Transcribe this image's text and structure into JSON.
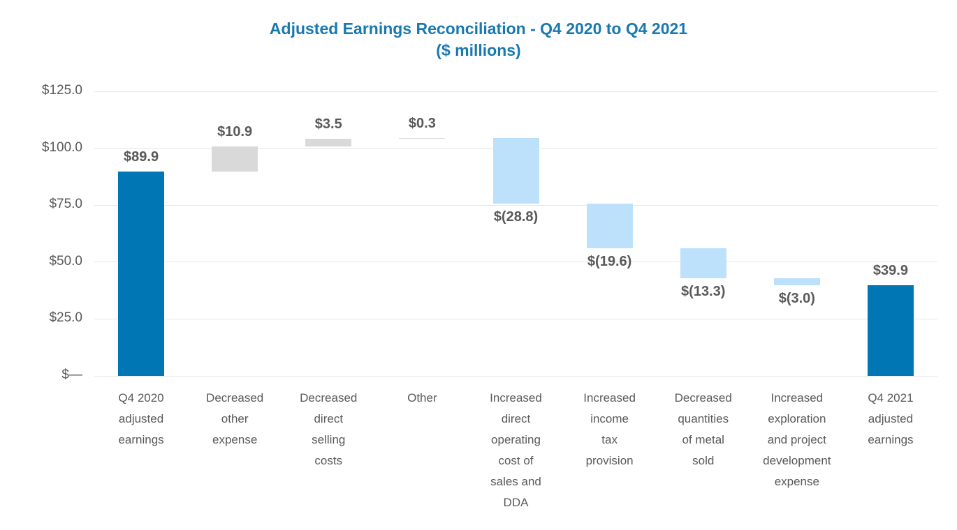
{
  "title": {
    "line1": "Adjusted Earnings Reconciliation - Q4 2020 to Q4 2021",
    "line2": "($ millions)"
  },
  "colors": {
    "title_text": "#1878B2",
    "total_bar": "#0076B4",
    "increase_bar": "#D9D9D9",
    "decrease_bar": "#BDE1FA",
    "label_text": "#595959",
    "axis_text": "#595959",
    "gridline": "#E6E6E6"
  },
  "chart_data": {
    "type": "bar",
    "subtype": "waterfall",
    "title": "Adjusted Earnings Reconciliation - Q4 2020 to Q4 2021",
    "subtitle": "($ millions)",
    "xlabel": "",
    "ylabel": "",
    "ylim": [
      0,
      125
    ],
    "grid": true,
    "legend": false,
    "y_ticks": [
      {
        "value": 125,
        "label": "$125.0"
      },
      {
        "value": 100,
        "label": "$100.0"
      },
      {
        "value": 75,
        "label": "$75.0"
      },
      {
        "value": 50,
        "label": "$50.0"
      },
      {
        "value": 25,
        "label": "$25.0"
      },
      {
        "value": 0,
        "label": "$—"
      }
    ],
    "bars": [
      {
        "category": "Q4 2020 adjusted earnings",
        "category_lines": [
          "Q4 2020",
          "adjusted",
          "earnings"
        ],
        "value": 89.9,
        "label": "$89.9",
        "start": 0,
        "end": 89.9,
        "role": "total",
        "label_position": "above"
      },
      {
        "category": "Decreased other expense",
        "category_lines": [
          "Decreased",
          "other",
          "expense"
        ],
        "value": 10.9,
        "label": "$10.9",
        "start": 89.9,
        "end": 100.8,
        "role": "increase",
        "label_position": "above"
      },
      {
        "category": "Decreased direct selling costs",
        "category_lines": [
          "Decreased",
          "direct",
          "selling",
          "costs"
        ],
        "value": 3.5,
        "label": "$3.5",
        "start": 100.8,
        "end": 104.3,
        "role": "increase",
        "label_position": "above"
      },
      {
        "category": "Other",
        "category_lines": [
          "Other"
        ],
        "value": 0.3,
        "label": "$0.3",
        "start": 104.3,
        "end": 104.6,
        "role": "increase",
        "label_position": "above"
      },
      {
        "category": "Increased direct operating cost of sales and DDA",
        "category_lines": [
          "Increased",
          "direct",
          "operating",
          "cost of",
          "sales and",
          "DDA"
        ],
        "value": -28.8,
        "label": "$(28.8)",
        "start": 104.6,
        "end": 75.8,
        "role": "decrease",
        "label_position": "below"
      },
      {
        "category": "Increased income tax provision",
        "category_lines": [
          "Increased",
          "income",
          "tax",
          "provision"
        ],
        "value": -19.6,
        "label": "$(19.6)",
        "start": 75.8,
        "end": 56.2,
        "role": "decrease",
        "label_position": "below"
      },
      {
        "category": "Decreased quantities of metal sold",
        "category_lines": [
          "Decreased",
          "quantities",
          "of metal",
          "sold"
        ],
        "value": -13.3,
        "label": "$(13.3)",
        "start": 56.2,
        "end": 42.9,
        "role": "decrease",
        "label_position": "below"
      },
      {
        "category": "Increased exploration and project development expense",
        "category_lines": [
          "Increased",
          "exploration",
          "and project",
          "development",
          "expense"
        ],
        "value": -3.0,
        "label": "$(3.0)",
        "start": 42.9,
        "end": 39.9,
        "role": "decrease",
        "label_position": "below"
      },
      {
        "category": "Q4 2021 adjusted earnings",
        "category_lines": [
          "Q4 2021",
          "adjusted",
          "earnings"
        ],
        "value": 39.9,
        "label": "$39.9",
        "start": 0,
        "end": 39.9,
        "role": "total",
        "label_position": "above"
      }
    ]
  }
}
